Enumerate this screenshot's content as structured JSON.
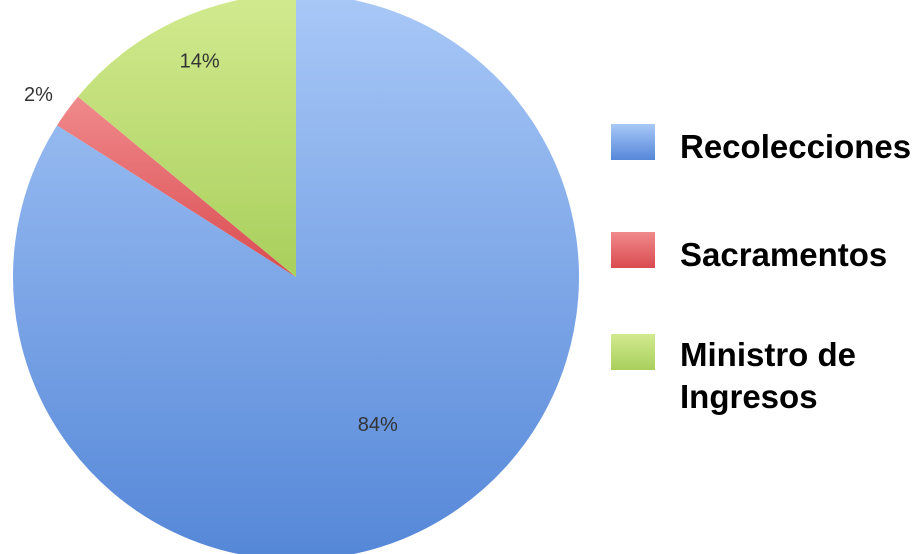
{
  "chart_data": {
    "type": "pie",
    "slices": [
      {
        "label": "Recolecciones",
        "value": 84,
        "display": "84%",
        "color": "#6d9ce3"
      },
      {
        "label": "Sacramentos",
        "value": 2,
        "display": "2%",
        "color": "#e35a5e"
      },
      {
        "label": "Ministro de Ingresos",
        "value": 14,
        "display": "14%",
        "color": "#b8d86e"
      }
    ],
    "legend": {
      "placement": "right",
      "items": [
        {
          "lines": [
            "Recolecciones"
          ],
          "color": "#6d9ce3"
        },
        {
          "lines": [
            "Sacramentos"
          ],
          "color": "#e35a5e"
        },
        {
          "lines": [
            "Ministro de",
            "Ingresos"
          ],
          "color": "#b8d86e"
        }
      ]
    }
  }
}
